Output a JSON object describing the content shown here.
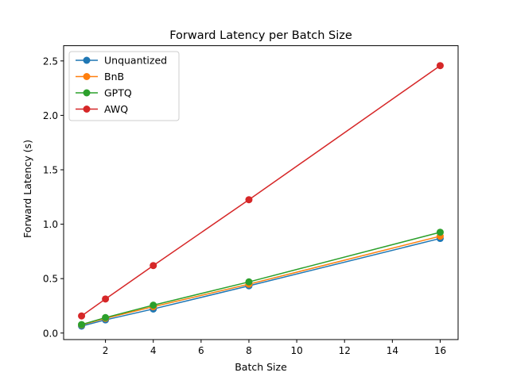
{
  "chart_data": {
    "type": "line",
    "title": "Forward Latency per Batch Size",
    "xlabel": "Batch Size",
    "ylabel": "Forward Latency (s)",
    "x": [
      1,
      2,
      4,
      8,
      16
    ],
    "xlim": [
      0.25,
      16.75
    ],
    "ylim": [
      -0.06,
      2.64
    ],
    "xticks": [
      2,
      4,
      6,
      8,
      10,
      12,
      14,
      16
    ],
    "xtick_labels": [
      "2",
      "4",
      "6",
      "8",
      "10",
      "12",
      "14",
      "16"
    ],
    "yticks": [
      0,
      0.5,
      1,
      1.5,
      2,
      2.5
    ],
    "ytick_labels": [
      "0.0",
      "0.5",
      "1.0",
      "1.5",
      "2.0",
      "2.5"
    ],
    "grid": false,
    "legend_position": "top-left",
    "series": [
      {
        "name": "Unquantized",
        "color": "#1f77b4",
        "values": [
          0.064,
          0.121,
          0.221,
          0.434,
          0.869
        ]
      },
      {
        "name": "BnB",
        "color": "#ff7f0e",
        "values": [
          0.075,
          0.135,
          0.242,
          0.449,
          0.89
        ]
      },
      {
        "name": "GPTQ",
        "color": "#2ca02c",
        "values": [
          0.078,
          0.142,
          0.256,
          0.47,
          0.926
        ]
      },
      {
        "name": "AWQ",
        "color": "#d62728",
        "values": [
          0.157,
          0.313,
          0.62,
          1.225,
          2.457
        ]
      }
    ]
  }
}
